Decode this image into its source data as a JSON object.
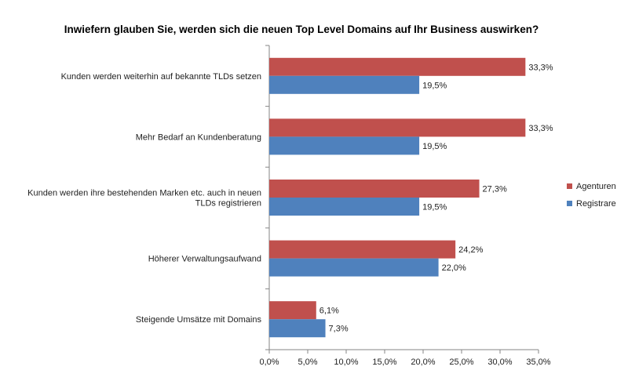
{
  "chart_data": {
    "type": "bar",
    "orientation": "horizontal",
    "title": "Inwiefern glauben Sie, werden sich die neuen Top Level Domains auf Ihr Business auswirken?",
    "categories": [
      "Kunden werden weiterhin auf bekannte TLDs setzen",
      "Mehr Bedarf an Kundenberatung",
      "Kunden werden ihre bestehenden Marken etc. auch in neuen TLDs registrieren",
      "Höherer Verwaltungsaufwand",
      "Steigende Umsätze mit Domains"
    ],
    "series": [
      {
        "name": "Agenturen",
        "color": "#c0504d",
        "values": [
          33.3,
          33.3,
          27.3,
          24.2,
          6.1
        ],
        "labels": [
          "33,3%",
          "33,3%",
          "27,3%",
          "24,2%",
          "6,1%"
        ]
      },
      {
        "name": "Registrare",
        "color": "#4f81bd",
        "values": [
          19.5,
          19.5,
          19.5,
          22.0,
          7.3
        ],
        "labels": [
          "19,5%",
          "19,5%",
          "19,5%",
          "22,0%",
          "7,3%"
        ]
      }
    ],
    "xlim": [
      0,
      35
    ],
    "xticks": [
      "0,0%",
      "5,0%",
      "10,0%",
      "15,0%",
      "20,0%",
      "25,0%",
      "30,0%",
      "35,0%"
    ],
    "xlabel": "",
    "ylabel": "",
    "grid": false,
    "legend_position": "right"
  }
}
